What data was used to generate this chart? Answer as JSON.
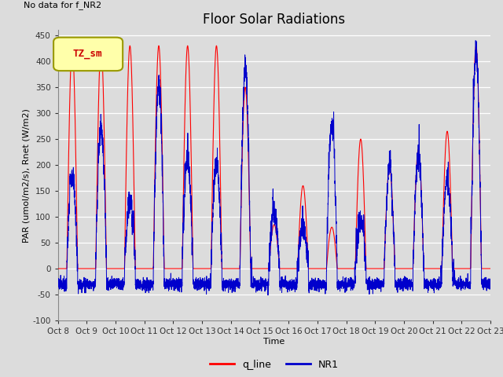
{
  "title": "Floor Solar Radiations",
  "no_data_text": "No data for f_NR2",
  "legend_box_label": "TZ_sm",
  "xlabel": "Time",
  "ylabel": "PAR (umol/m2/s), Rnet (W/m2)",
  "ylim": [
    -100,
    460
  ],
  "yticks": [
    -100,
    -50,
    0,
    50,
    100,
    150,
    200,
    250,
    300,
    350,
    400,
    450
  ],
  "bg_color": "#dcdcdc",
  "plot_bg_color": "#dcdcdc",
  "red_color": "#ff0000",
  "blue_color": "#0000cc",
  "n_days": 15,
  "points_per_day": 288,
  "title_fontsize": 12,
  "label_fontsize": 8,
  "tick_fontsize": 7.5
}
